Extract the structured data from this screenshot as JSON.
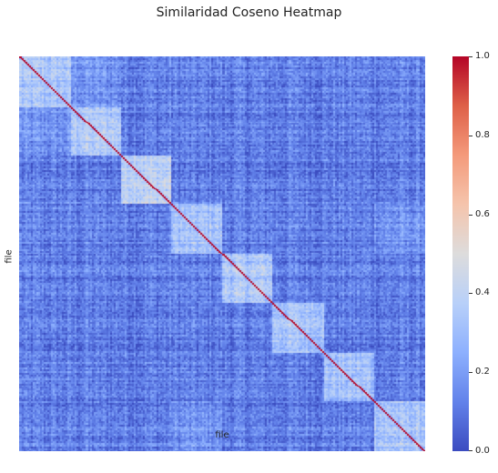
{
  "chart_data": {
    "type": "heatmap",
    "title": "Similaridad Coseno Heatmap",
    "xlabel": "file",
    "ylabel": "file",
    "colormap": "coolwarm",
    "colorbar": {
      "range": [
        0,
        1
      ],
      "ticks": [
        {
          "value": 0.0,
          "label": "0.0"
        },
        {
          "value": 0.2,
          "label": "0.2"
        },
        {
          "value": 0.4,
          "label": "0.4"
        },
        {
          "value": 0.6,
          "label": "0.6"
        },
        {
          "value": 0.8,
          "label": "0.8"
        },
        {
          "value": 1.0,
          "label": "1.0"
        }
      ],
      "low_color": "#3b4cc0",
      "high_color": "#b40426"
    },
    "matrix_size": 220,
    "diagonal_value": 1.0,
    "background_similarity": 0.12,
    "clusters": [
      {
        "start": 0,
        "end": 28,
        "similarity": 0.33
      },
      {
        "start": 28,
        "end": 55,
        "similarity": 0.36
      },
      {
        "start": 55,
        "end": 82,
        "similarity": 0.4
      },
      {
        "start": 82,
        "end": 110,
        "similarity": 0.32
      },
      {
        "start": 110,
        "end": 137,
        "similarity": 0.35
      },
      {
        "start": 137,
        "end": 165,
        "similarity": 0.34
      },
      {
        "start": 165,
        "end": 192,
        "similarity": 0.31
      },
      {
        "start": 192,
        "end": 220,
        "similarity": 0.33
      }
    ]
  }
}
